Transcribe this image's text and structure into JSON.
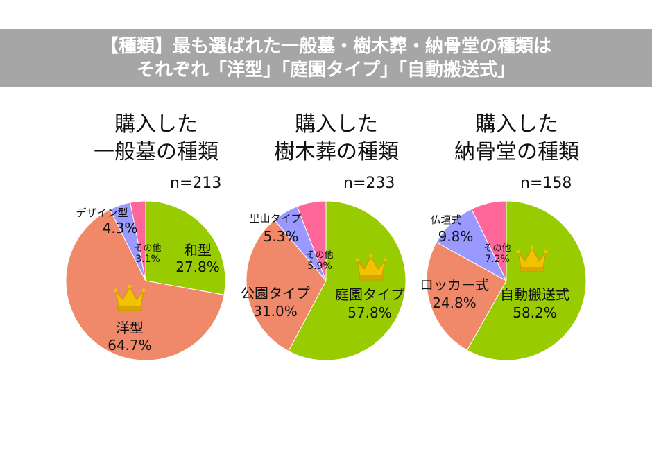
{
  "title": {
    "line1": "【種類】最も選ばれた一般墓・樹木葬・納骨堂の種類は",
    "line2": "それぞれ「洋型」「庭園タイプ」「自動搬送式」"
  },
  "colors": {
    "green": "#99cc00",
    "salmon": "#f0896a",
    "lavender": "#9999ff",
    "pink": "#ff6699",
    "crown": "#f2c200",
    "title_bg": "#a6a6a6"
  },
  "chart_data": [
    {
      "type": "pie",
      "title_line1": "購入した",
      "title_line2": "一般墓の種類",
      "n": "n=213",
      "slices": [
        {
          "label": "和型",
          "value": 27.8,
          "value_text": "27.8%",
          "color": "#99cc00"
        },
        {
          "label": "洋型",
          "value": 64.7,
          "value_text": "64.7%",
          "color": "#f0896a"
        },
        {
          "label": "デザイン型",
          "value": 4.3,
          "value_text": "4.3%",
          "color": "#9999ff"
        },
        {
          "label": "その他",
          "value": 3.1,
          "value_text": "3.1%",
          "color": "#ff6699"
        }
      ],
      "top_choice": "洋型"
    },
    {
      "type": "pie",
      "title_line1": "購入した",
      "title_line2": "樹木葬の種類",
      "n": "n=233",
      "slices": [
        {
          "label": "庭園タイプ",
          "value": 57.8,
          "value_text": "57.8%",
          "color": "#99cc00"
        },
        {
          "label": "公園タイプ",
          "value": 31.0,
          "value_text": "31.0%",
          "color": "#f0896a"
        },
        {
          "label": "里山タイプ",
          "value": 5.3,
          "value_text": "5.3%",
          "color": "#9999ff"
        },
        {
          "label": "その他",
          "value": 5.9,
          "value_text": "5.9%",
          "color": "#ff6699"
        }
      ],
      "top_choice": "庭園タイプ"
    },
    {
      "type": "pie",
      "title_line1": "購入した",
      "title_line2": "納骨堂の種類",
      "n": "n=158",
      "slices": [
        {
          "label": "自動搬送式",
          "value": 58.2,
          "value_text": "58.2%",
          "color": "#99cc00"
        },
        {
          "label": "ロッカー式",
          "value": 24.8,
          "value_text": "24.8%",
          "color": "#f0896a"
        },
        {
          "label": "仏壇式",
          "value": 9.8,
          "value_text": "9.8%",
          "color": "#9999ff"
        },
        {
          "label": "その他",
          "value": 7.2,
          "value_text": "7.2%",
          "color": "#ff6699"
        }
      ],
      "top_choice": "自動搬送式"
    }
  ]
}
